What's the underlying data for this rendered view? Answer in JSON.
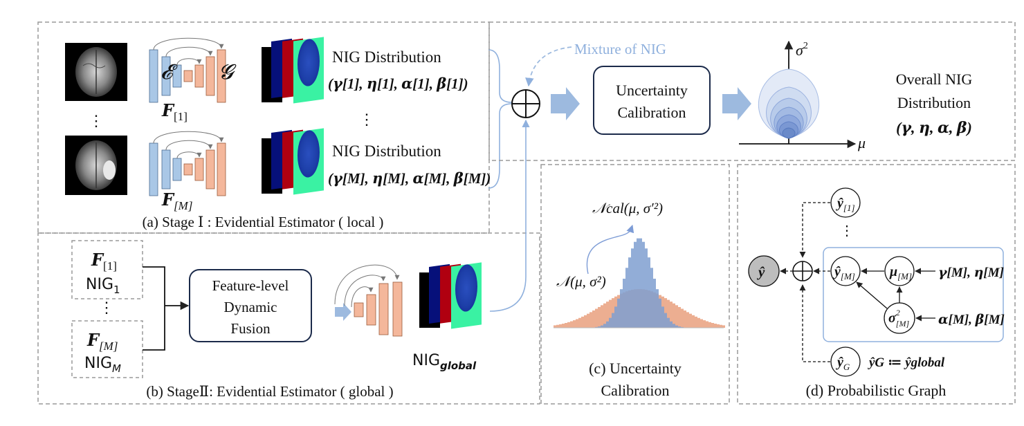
{
  "colors": {
    "encoder_blue": "#a9c7e6",
    "decoder_orange": "#f4b79b",
    "arrow_blue": "#9dbadf",
    "dash_gray": "#999999",
    "curve_blue": "#7d9cd6",
    "hist_blue": "#7f9fd0",
    "hist_orange": "#eaa585"
  },
  "icons": [
    "brain-mri-icon",
    "oplus-icon",
    "block-arrow-icon"
  ],
  "panel_a": {
    "caption": "(a) Stage Ⅰ : Evidential Estimator ( local )",
    "encoder_symbol": "𝓔",
    "decoder_symbol": "𝓖",
    "feature_1": "𝑭",
    "feature_1_sub": "[1]",
    "feature_m": "𝑭",
    "feature_m_sub": "[M]",
    "nig_title_1": "NIG Distribution",
    "nig_params_1": "(𝜸[1], 𝜼[1], 𝜶[1], 𝜷[1])",
    "nig_title_m": "NIG Distribution",
    "nig_params_m": "(𝜸[M], 𝜼[M], 𝜶[M], 𝜷[M])",
    "vdots": "⋮"
  },
  "top_flow": {
    "mixture_label": "Mixture of NIG",
    "calibration_line1": "Uncertainty",
    "calibration_line2": "Calibration",
    "axis_y": "σ",
    "axis_y_sup": "2",
    "axis_x": "μ",
    "overall_line1": "Overall NIG",
    "overall_line2": "Distribution",
    "overall_params": "(𝜸, 𝜼, 𝜶, 𝜷)"
  },
  "panel_b": {
    "caption": "(b) StageⅡ: Evidential Estimator ( global )",
    "box1_feature": "𝑭",
    "box1_feature_sub": "[1]",
    "box1_nig": "NIG",
    "box1_nig_sub": "1",
    "box2_feature": "𝑭",
    "box2_feature_sub": "[M]",
    "box2_nig": "NIG",
    "box2_nig_sub": "M",
    "fusion_line1": "Feature-level",
    "fusion_line2": "Dynamic",
    "fusion_line3": "Fusion",
    "global_label": "NIG",
    "global_sub": "global",
    "vdots": "⋮"
  },
  "panel_c": {
    "caption_line1": "(c) Uncertainty",
    "caption_line2": "Calibration",
    "label_cal": "𝒩cal(μ, σ′²)",
    "label_orig": "𝒩(μ, σ²)"
  },
  "panel_d": {
    "caption": "(d) Probabilistic Graph",
    "node_y1": "ŷ",
    "node_y1_sub": "[1]",
    "node_ym": "ŷ",
    "node_ym_sub": "[M]",
    "node_mu": "μ",
    "node_mu_sub": "[M]",
    "node_sigma": "σ",
    "node_sigma_sup": "2",
    "node_sigma_sub": "[M]",
    "node_yg": "ŷ",
    "node_yg_sub": "G",
    "node_y": "ŷ",
    "param_gamma_eta": "𝜸[M], 𝜼[M]",
    "param_alpha_beta": "𝜶[M], 𝜷[M]",
    "yg_def": "ŷG ≔ ŷglobal",
    "vdots": "⋮"
  }
}
